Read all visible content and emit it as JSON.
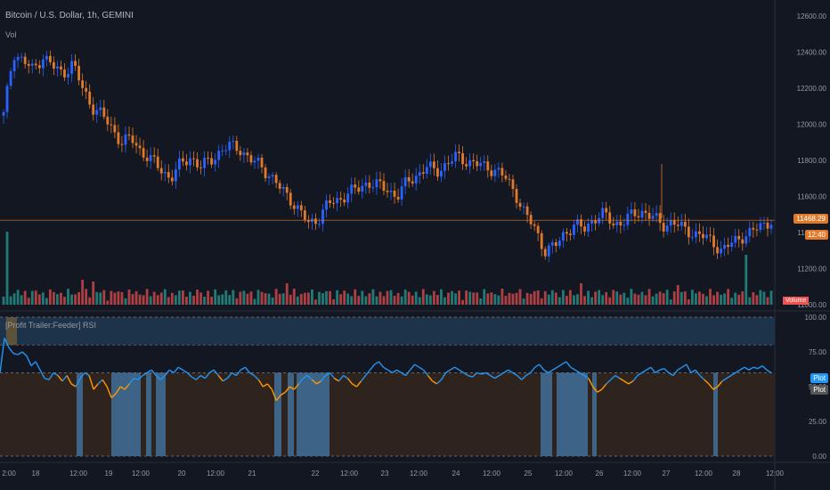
{
  "header": {
    "title": "Bitcoin / U.S. Dollar, 1h, GEMINI",
    "volume_label": "Vol",
    "indicator_title": "[Profit Trailer:Feeder] RSI"
  },
  "tags": {
    "last_price": "11468.29",
    "countdown": "12:40",
    "volume": "Volume",
    "rsi_plot1": "Plot",
    "rsi_plot2": "Plot"
  },
  "colors": {
    "background": "#131722",
    "up": "#2962ff",
    "down": "#e0792a",
    "vol_up": "#26a69a",
    "vol_down": "#ef5350",
    "rsi_blue": "#2196f3",
    "rsi_orange": "#ff9800",
    "overbought_band": "#1d3349",
    "oversold_band": "#2e231d",
    "highlight_bar": "#3f6e99",
    "last_price_line": "#e0792a"
  },
  "chart_data": [
    {
      "type": "candlestick",
      "title": "Bitcoin / U.S. Dollar, 1h, GEMINI",
      "y_ticks": [
        12600,
        12400,
        12200,
        12000,
        11800,
        11600,
        11400,
        11200,
        11000
      ],
      "ylim": [
        11000,
        12650
      ],
      "x_ticks": [
        "2:00",
        "18",
        "12:00",
        "19",
        "12:00",
        "20",
        "12:00",
        "21",
        "22",
        "12:00",
        "23",
        "12:00",
        "24",
        "12:00",
        "25",
        "12:00",
        "26",
        "12:00",
        "27",
        "12:00",
        "28",
        "12:00"
      ],
      "close_path": [
        12050,
        12400,
        12350,
        12300,
        12380,
        12320,
        12280,
        12340,
        12200,
        12100,
        12050,
        11980,
        11900,
        11920,
        11850,
        11800,
        11750,
        11700,
        11780,
        11820,
        11760,
        11800,
        11850,
        11880,
        11870,
        11800,
        11780,
        11720,
        11650,
        11600,
        11520,
        11450,
        11480,
        11560,
        11580,
        11620,
        11640,
        11680,
        11660,
        11640,
        11600,
        11680,
        11720,
        11760,
        11740,
        11780,
        11820,
        11800,
        11780,
        11760,
        11750,
        11700,
        11620,
        11500,
        11420,
        11300,
        11320,
        11400,
        11440,
        11420,
        11480,
        11500,
        11450,
        11460,
        11500,
        11520,
        11480,
        11440,
        11460,
        11420,
        11400,
        11380,
        11350,
        11300,
        11340,
        11380,
        11400,
        11440,
        11468
      ],
      "last_price": 11468.29
    },
    {
      "type": "bar",
      "series": [
        {
          "name": "Volume",
          "values": "hourly volume bars, green up / red down"
        }
      ]
    },
    {
      "type": "line",
      "title": "[Profit Trailer:Feeder] RSI",
      "y_ticks": [
        100.0,
        75.0,
        50.0,
        25.0,
        0.0
      ],
      "ylim": [
        0,
        100
      ],
      "levels": [
        100,
        80,
        60,
        0
      ],
      "rsi_values": [
        60,
        85,
        78,
        74,
        73,
        75,
        72,
        65,
        68,
        62,
        56,
        55,
        60,
        58,
        54,
        58,
        52,
        50,
        56,
        60,
        58,
        48,
        52,
        55,
        50,
        42,
        45,
        50,
        48,
        52,
        56,
        55,
        58,
        60,
        62,
        58,
        55,
        58,
        62,
        60,
        64,
        62,
        60,
        57,
        55,
        58,
        56,
        60,
        62,
        58,
        54,
        56,
        60,
        58,
        62,
        64,
        60,
        58,
        55,
        50,
        52,
        48,
        40,
        44,
        46,
        50,
        48,
        52,
        56,
        58,
        55,
        52,
        54,
        58,
        60,
        56,
        54,
        58,
        56,
        52,
        50,
        54,
        58,
        62,
        66,
        68,
        64,
        62,
        60,
        62,
        60,
        58,
        62,
        66,
        64,
        62,
        58,
        54,
        52,
        55,
        60,
        62,
        64,
        62,
        60,
        58,
        57,
        60,
        59,
        60,
        58,
        56,
        58,
        60,
        62,
        60,
        58,
        55,
        58,
        60,
        64,
        66,
        62,
        60,
        62,
        64,
        66,
        68,
        64,
        62,
        60,
        58,
        56,
        50,
        46,
        48,
        52,
        55,
        58,
        56,
        54,
        52,
        54,
        58,
        60,
        62,
        64,
        60,
        62,
        63,
        60,
        58,
        62,
        64,
        66,
        60,
        62,
        58,
        55,
        52,
        48,
        50,
        54,
        56,
        58,
        60,
        62,
        64,
        62,
        64,
        63,
        65,
        62,
        60
      ],
      "oversold_highlight_ranges": [
        [
          86,
          93
        ],
        [
          125,
          158
        ],
        [
          164,
          170
        ],
        [
          175,
          186
        ],
        [
          308,
          316
        ],
        [
          323,
          330
        ],
        [
          333,
          370
        ],
        [
          607,
          620
        ],
        [
          625,
          660
        ],
        [
          665,
          670
        ],
        [
          801,
          806
        ]
      ],
      "series": [
        {
          "name": "Plot"
        },
        {
          "name": "Plot"
        }
      ]
    }
  ]
}
